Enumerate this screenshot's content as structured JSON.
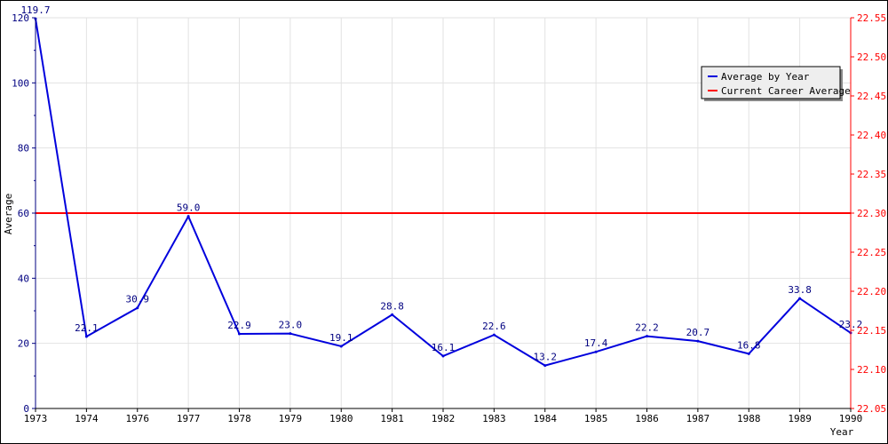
{
  "chart_data": {
    "type": "line",
    "xlabel": "Year",
    "ylabel": "Average",
    "categories": [
      "1973",
      "1974",
      "1976",
      "1977",
      "1978",
      "1979",
      "1980",
      "1981",
      "1982",
      "1983",
      "1984",
      "1985",
      "1986",
      "1987",
      "1988",
      "1989",
      "1990"
    ],
    "series": [
      {
        "name": "Average by Year",
        "color": "#0000dd",
        "axis": "left",
        "values": [
          119.7,
          22.1,
          30.9,
          59.0,
          22.9,
          23.0,
          19.1,
          28.8,
          16.1,
          22.6,
          13.2,
          17.4,
          22.2,
          20.7,
          16.8,
          33.8,
          23.2
        ],
        "labels": [
          "119.7",
          "22.1",
          "30.9",
          "59.0",
          "22.9",
          "23.0",
          "19.1",
          "28.8",
          "16.1",
          "22.6",
          "13.2",
          "17.4",
          "22.2",
          "20.7",
          "16.8",
          "33.8",
          "23.2"
        ]
      },
      {
        "name": "Current Career Average",
        "color": "#ff0000",
        "axis": "right",
        "value": 22.3
      }
    ],
    "y_left": {
      "min": 0,
      "max": 120,
      "ticks": [
        "0",
        "20",
        "40",
        "60",
        "80",
        "100",
        "120"
      ],
      "color": "#000080"
    },
    "y_right": {
      "min": 22.05,
      "max": 22.55,
      "ticks": [
        "22.05",
        "22.10",
        "22.15",
        "22.20",
        "22.25",
        "22.30",
        "22.35",
        "22.40",
        "22.45",
        "22.50",
        "22.55"
      ],
      "color": "#ff0000"
    },
    "grid": true,
    "legend_position": "top-right"
  }
}
